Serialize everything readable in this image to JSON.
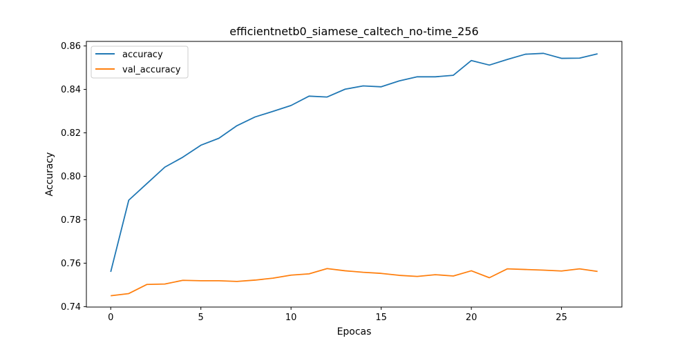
{
  "chart_data": {
    "type": "line",
    "title": "efficientnetb0_siamese_caltech_no-time_256",
    "xlabel": "Epocas",
    "ylabel": "Accuracy",
    "xlim": [
      -1.35,
      28.35
    ],
    "ylim": [
      0.7398,
      0.8621
    ],
    "xticks": [
      0,
      5,
      10,
      15,
      20,
      25
    ],
    "yticks": [
      0.74,
      0.76,
      0.78,
      0.8,
      0.82,
      0.84,
      0.86
    ],
    "ytick_labels": [
      "0.74",
      "0.76",
      "0.78",
      "0.80",
      "0.82",
      "0.84",
      "0.86"
    ],
    "grid": false,
    "legend_position": "upper-left",
    "x": [
      0,
      1,
      2,
      3,
      4,
      5,
      6,
      7,
      8,
      9,
      10,
      11,
      12,
      13,
      14,
      15,
      16,
      17,
      18,
      19,
      20,
      21,
      22,
      23,
      24,
      25,
      26,
      27
    ],
    "series": [
      {
        "name": "accuracy",
        "color": "#1f77b4",
        "values": [
          0.756,
          0.789,
          0.7966,
          0.8042,
          0.8088,
          0.8143,
          0.8175,
          0.8233,
          0.8273,
          0.8299,
          0.8326,
          0.8369,
          0.8365,
          0.8401,
          0.8416,
          0.8412,
          0.8439,
          0.8458,
          0.8458,
          0.8465,
          0.8533,
          0.8512,
          0.8538,
          0.8562,
          0.8566,
          0.8543,
          0.8544,
          0.8564
        ]
      },
      {
        "name": "val_accuracy",
        "color": "#ff7f0e",
        "values": [
          0.745,
          0.746,
          0.7502,
          0.7504,
          0.7521,
          0.7519,
          0.7519,
          0.7516,
          0.7522,
          0.7531,
          0.7545,
          0.7551,
          0.7575,
          0.7565,
          0.7558,
          0.7553,
          0.7544,
          0.7539,
          0.7547,
          0.7541,
          0.7565,
          0.7533,
          0.7574,
          0.7571,
          0.7568,
          0.7564,
          0.7574,
          0.7562
        ]
      }
    ]
  }
}
